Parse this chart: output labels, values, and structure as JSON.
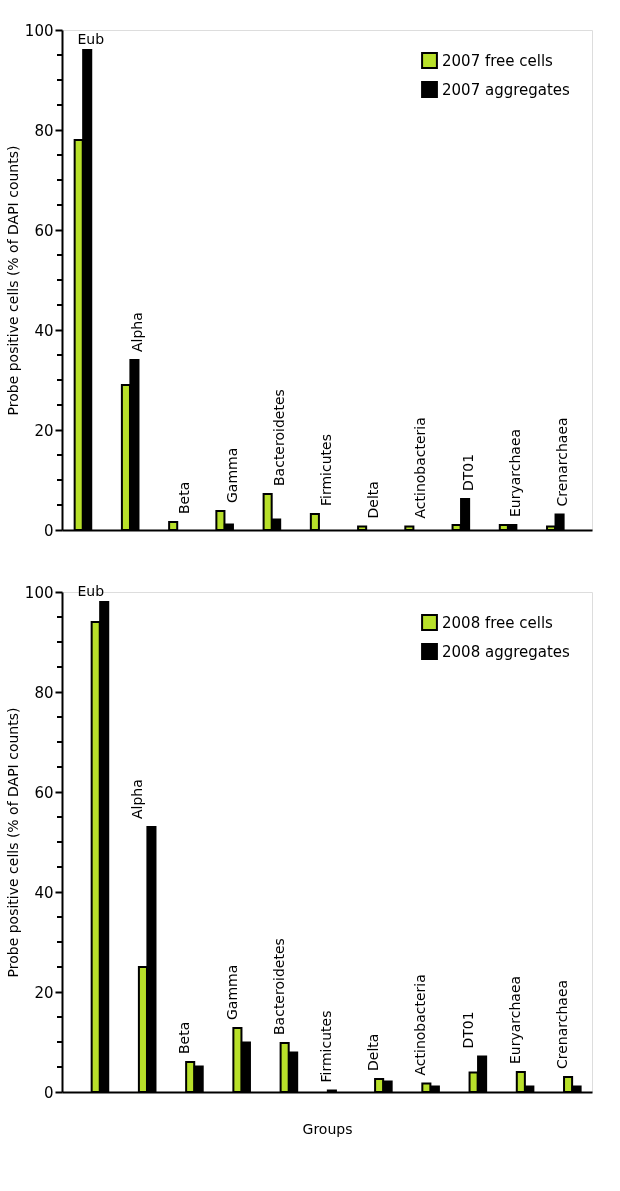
{
  "chart_data": [
    {
      "type": "bar",
      "ylabel": "Probe positive cells (% of DAPI counts)",
      "categories": [
        "Eub",
        "Alpha",
        "Beta",
        "Gamma",
        "Bacteroidetes",
        "Firmicutes",
        "Delta",
        "Actinobacteria",
        "DT01",
        "Euryarchaea",
        "Crenarchaea"
      ],
      "series": [
        {
          "name": "2007 free cells",
          "color": "#b8e02a",
          "values": [
            78,
            29,
            1.6,
            3.8,
            7.2,
            3.2,
            0.7,
            0.7,
            1.0,
            1.0,
            0.7
          ]
        },
        {
          "name": "2007 aggregates",
          "color": "#000000",
          "values": [
            96,
            34,
            null,
            1.1,
            2.1,
            null,
            null,
            null,
            6.2,
            1.0,
            3.1
          ]
        }
      ],
      "ylim": [
        0,
        100
      ],
      "yticks": [
        0,
        {
          "value": 5,
          "label": null
        },
        {
          "value": 10,
          "label": null
        },
        {
          "value": 15,
          "label": null
        },
        20,
        {
          "value": 25,
          "label": null
        },
        {
          "value": 30,
          "label": null
        },
        {
          "value": 35,
          "label": null
        },
        40,
        {
          "value": 45,
          "label": null
        },
        {
          "value": 50,
          "label": null
        },
        {
          "value": 55,
          "label": null
        },
        60,
        {
          "value": 65,
          "label": null
        },
        {
          "value": 70,
          "label": null
        },
        {
          "value": 75,
          "label": null
        },
        80,
        {
          "value": 85,
          "label": null
        },
        {
          "value": 90,
          "label": null
        },
        {
          "value": 95,
          "label": null
        },
        100
      ],
      "legend": "top right",
      "grid": false,
      "tick_labels": "y"
    },
    {
      "type": "bar",
      "xlabel": "Groups",
      "ylabel": "Probe positive cells (% of DAPI counts)",
      "categories": [
        "Eub",
        "Alpha",
        "Beta",
        "Gamma",
        "Bacteroidetes",
        "Firmicutes",
        "Delta",
        "Actinobacteria",
        "DT01",
        "Euryarchaea",
        "Crenarchaea"
      ],
      "series": [
        {
          "name": "2008 free cells",
          "color": "#b8e02a",
          "values": [
            94,
            25,
            6.0,
            12.8,
            9.8,
            0.3,
            2.6,
            1.7,
            3.9,
            4.0,
            3.0
          ]
        },
        {
          "name": "2008 aggregates",
          "color": "#000000",
          "values": [
            98,
            53,
            5.1,
            9.9,
            7.9,
            null,
            2.1,
            1.1,
            7.1,
            1.1,
            1.1
          ]
        }
      ],
      "ylim": [
        0,
        100
      ],
      "yticks": [
        0,
        {
          "value": 5,
          "label": null
        },
        {
          "value": 10,
          "label": null
        },
        {
          "value": 15,
          "label": null
        },
        20,
        {
          "value": 25,
          "label": null
        },
        {
          "value": 30,
          "label": null
        },
        {
          "value": 35,
          "label": null
        },
        40,
        {
          "value": 45,
          "label": null
        },
        {
          "value": 50,
          "label": null
        },
        {
          "value": 55,
          "label": null
        },
        60,
        {
          "value": 65,
          "label": null
        },
        {
          "value": 70,
          "label": null
        },
        {
          "value": 75,
          "label": null
        },
        80,
        {
          "value": 85,
          "label": null
        },
        {
          "value": 90,
          "label": null
        },
        {
          "value": 95,
          "label": null
        },
        100
      ],
      "legend": "top right",
      "grid": false,
      "tick_labels": "y"
    }
  ]
}
